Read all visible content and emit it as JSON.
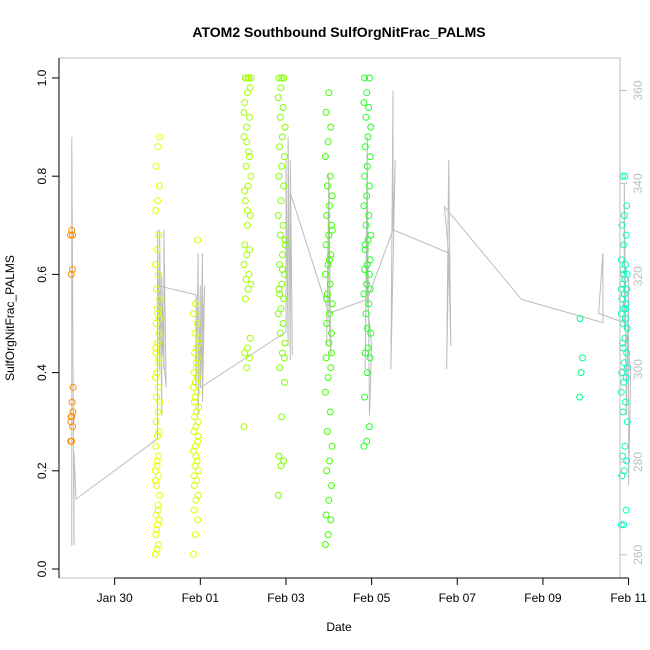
{
  "chart_data": {
    "type": "scatter",
    "title": "ATOM2 Southbound SulfOrgNitFrac_PALMS",
    "xlabel": "Date",
    "ylabel": "SulfOrgNitFrac_PALMS",
    "xlim": [
      -0.3,
      12.8
    ],
    "ylim": [
      0,
      1.0
    ],
    "y2lim": [
      255,
      367
    ],
    "x_ticks": [
      {
        "v": 1,
        "label": "Jan 30"
      },
      {
        "v": 3,
        "label": "Feb 01"
      },
      {
        "v": 5,
        "label": "Feb 03"
      },
      {
        "v": 7,
        "label": "Feb 05"
      },
      {
        "v": 9,
        "label": "Feb 07"
      },
      {
        "v": 11,
        "label": "Feb 09"
      },
      {
        "v": 13,
        "label": "Feb 11"
      }
    ],
    "y_ticks": [
      {
        "v": 0.0,
        "label": "0.0"
      },
      {
        "v": 0.2,
        "label": "0.2"
      },
      {
        "v": 0.4,
        "label": "0.4"
      },
      {
        "v": 0.6,
        "label": "0.6"
      },
      {
        "v": 0.8,
        "label": "0.8"
      },
      {
        "v": 1.0,
        "label": "1.0"
      }
    ],
    "y2_ticks": [
      {
        "v": 260,
        "label": "260"
      },
      {
        "v": 280,
        "label": "280"
      },
      {
        "v": 300,
        "label": "300"
      },
      {
        "v": 320,
        "label": "320"
      },
      {
        "v": 340,
        "label": "340"
      },
      {
        "v": 360,
        "label": "360"
      }
    ],
    "flights": [
      {
        "center": 0.0,
        "spread": 0.03,
        "color": "#ff8c00",
        "values": [
          0.26,
          0.26,
          0.29,
          0.3,
          0.31,
          0.32,
          0.31,
          0.34,
          0.37,
          0.6,
          0.61,
          0.68,
          0.69,
          0.68
        ]
      },
      {
        "center": 2.0,
        "spread": 0.05,
        "color": "#e6ff00",
        "values": [
          0.03,
          0.04,
          0.05,
          0.07,
          0.09,
          0.1,
          0.11,
          0.13,
          0.15,
          0.17,
          0.19,
          0.2,
          0.21,
          0.23,
          0.25,
          0.27,
          0.28,
          0.3,
          0.32,
          0.34,
          0.35,
          0.37,
          0.39,
          0.4,
          0.42,
          0.44,
          0.46,
          0.48,
          0.5,
          0.52,
          0.55,
          0.57,
          0.6,
          0.62,
          0.65,
          0.68,
          0.73,
          0.75,
          0.78,
          0.82,
          0.86,
          0.88,
          0.08,
          0.12,
          0.18,
          0.22,
          0.43,
          0.45,
          0.53,
          0.51
        ]
      },
      {
        "center": 2.9,
        "spread": 0.06,
        "color": "#d9ff00",
        "values": [
          0.03,
          0.07,
          0.1,
          0.12,
          0.14,
          0.15,
          0.17,
          0.18,
          0.2,
          0.21,
          0.22,
          0.24,
          0.25,
          0.26,
          0.28,
          0.29,
          0.3,
          0.31,
          0.32,
          0.33,
          0.35,
          0.36,
          0.37,
          0.38,
          0.39,
          0.4,
          0.42,
          0.43,
          0.44,
          0.45,
          0.47,
          0.48,
          0.5,
          0.52,
          0.54,
          0.67,
          0.19,
          0.23,
          0.27,
          0.34,
          0.41,
          0.46
        ]
      },
      {
        "center": 4.1,
        "spread": 0.08,
        "color": "#a6ff00",
        "values": [
          0.29,
          0.41,
          0.43,
          0.44,
          0.45,
          0.47,
          0.55,
          0.57,
          0.58,
          0.59,
          0.6,
          0.62,
          0.64,
          0.65,
          0.66,
          0.7,
          0.72,
          0.75,
          0.78,
          0.8,
          0.82,
          0.85,
          0.88,
          0.9,
          0.92,
          0.95,
          0.97,
          0.98,
          1.0,
          1.0,
          1.0,
          1.0,
          1.0,
          0.93,
          0.87,
          0.84,
          0.77,
          0.73
        ]
      },
      {
        "center": 4.9,
        "spread": 0.08,
        "color": "#7fff00",
        "values": [
          0.15,
          0.21,
          0.22,
          0.23,
          0.31,
          0.38,
          0.41,
          0.44,
          0.46,
          0.48,
          0.5,
          0.52,
          0.53,
          0.55,
          0.57,
          0.58,
          0.6,
          0.62,
          0.64,
          0.66,
          0.68,
          0.7,
          0.72,
          0.75,
          0.78,
          0.8,
          0.82,
          0.84,
          0.86,
          0.88,
          0.9,
          0.92,
          0.94,
          0.96,
          0.98,
          1.0,
          1.0,
          1.0,
          0.43,
          0.56,
          0.61,
          0.67
        ]
      },
      {
        "center": 6.0,
        "spread": 0.08,
        "color": "#40ff00",
        "values": [
          0.05,
          0.07,
          0.1,
          0.11,
          0.14,
          0.17,
          0.2,
          0.22,
          0.25,
          0.28,
          0.32,
          0.36,
          0.39,
          0.41,
          0.43,
          0.46,
          0.48,
          0.5,
          0.52,
          0.54,
          0.56,
          0.58,
          0.6,
          0.62,
          0.64,
          0.66,
          0.68,
          0.7,
          0.72,
          0.74,
          0.76,
          0.78,
          0.8,
          0.84,
          0.87,
          0.9,
          0.93,
          0.97,
          0.44,
          0.55,
          0.63,
          0.69
        ]
      },
      {
        "center": 6.9,
        "spread": 0.08,
        "color": "#26ff26",
        "values": [
          0.25,
          0.26,
          0.29,
          0.35,
          0.4,
          0.43,
          0.44,
          0.45,
          0.48,
          0.52,
          0.54,
          0.56,
          0.58,
          0.6,
          0.61,
          0.62,
          0.63,
          0.65,
          0.67,
          0.68,
          0.7,
          0.72,
          0.74,
          0.76,
          0.78,
          0.8,
          0.82,
          0.84,
          0.86,
          0.88,
          0.9,
          0.92,
          0.94,
          0.95,
          0.97,
          1.0,
          1.0,
          0.49,
          0.57,
          0.66
        ]
      },
      {
        "center": 11.9,
        "spread": 0.04,
        "color": "#00ff80",
        "values": [
          0.35,
          0.4,
          0.43,
          0.51
        ]
      },
      {
        "center": 12.9,
        "spread": 0.07,
        "color": "#00ffbf",
        "values": [
          0.09,
          0.09,
          0.12,
          0.19,
          0.2,
          0.22,
          0.23,
          0.25,
          0.3,
          0.32,
          0.34,
          0.36,
          0.38,
          0.39,
          0.4,
          0.42,
          0.44,
          0.46,
          0.47,
          0.49,
          0.5,
          0.51,
          0.52,
          0.53,
          0.54,
          0.55,
          0.56,
          0.57,
          0.58,
          0.59,
          0.6,
          0.61,
          0.62,
          0.63,
          0.66,
          0.68,
          0.7,
          0.72,
          0.74,
          0.8,
          0.8,
          0.41,
          0.45,
          0.53,
          0.57,
          0.6
        ]
      }
    ],
    "altitude_trace": {
      "color": "#bdbdbd",
      "path": [
        [
          0.0,
          262
        ],
        [
          0.0,
          350
        ],
        [
          0.05,
          262
        ],
        [
          0.05,
          282
        ],
        [
          0.1,
          272
        ],
        [
          2.0,
          285
        ],
        [
          2.0,
          330
        ],
        [
          2.05,
          300
        ],
        [
          2.05,
          330
        ],
        [
          2.1,
          290
        ],
        [
          2.1,
          320
        ],
        [
          2.15,
          300
        ],
        [
          2.15,
          330
        ],
        [
          2.2,
          296
        ],
        [
          2.0,
          318
        ],
        [
          2.9,
          316
        ],
        [
          2.9,
          296
        ],
        [
          2.95,
          325
        ],
        [
          2.95,
          290
        ],
        [
          3.0,
          318
        ],
        [
          3.0,
          296
        ],
        [
          3.05,
          325
        ],
        [
          3.05,
          293
        ],
        [
          3.1,
          318
        ],
        [
          3.0,
          296
        ],
        [
          5.0,
          308
        ],
        [
          5.0,
          345
        ],
        [
          5.05,
          305
        ],
        [
          5.05,
          350
        ],
        [
          5.1,
          302
        ],
        [
          5.1,
          345
        ],
        [
          5.15,
          303
        ],
        [
          5.1,
          338
        ],
        [
          6.0,
          312
        ],
        [
          6.0,
          342
        ],
        [
          5.95,
          305
        ],
        [
          6.0,
          340
        ],
        [
          6.05,
          303
        ],
        [
          6.0,
          312
        ],
        [
          6.9,
          315
        ],
        [
          6.9,
          350
        ],
        [
          6.85,
          300
        ],
        [
          6.9,
          340
        ],
        [
          6.95,
          290
        ],
        [
          7.0,
          305
        ],
        [
          6.9,
          315
        ],
        [
          7.5,
          330
        ],
        [
          7.5,
          360
        ],
        [
          7.45,
          300
        ],
        [
          7.55,
          345
        ],
        [
          7.5,
          330
        ],
        [
          8.8,
          325
        ],
        [
          8.85,
          305
        ],
        [
          8.8,
          345
        ],
        [
          8.75,
          300
        ],
        [
          8.8,
          325
        ],
        [
          8.7,
          335
        ],
        [
          10.5,
          315
        ],
        [
          12.4,
          310
        ],
        [
          12.4,
          325
        ],
        [
          12.3,
          312
        ],
        [
          12.9,
          310
        ],
        [
          12.9,
          340
        ],
        [
          12.95,
          290
        ],
        [
          13.0,
          320
        ],
        [
          13.0,
          275
        ],
        [
          13.05,
          300
        ],
        [
          12.9,
          310
        ]
      ]
    }
  }
}
